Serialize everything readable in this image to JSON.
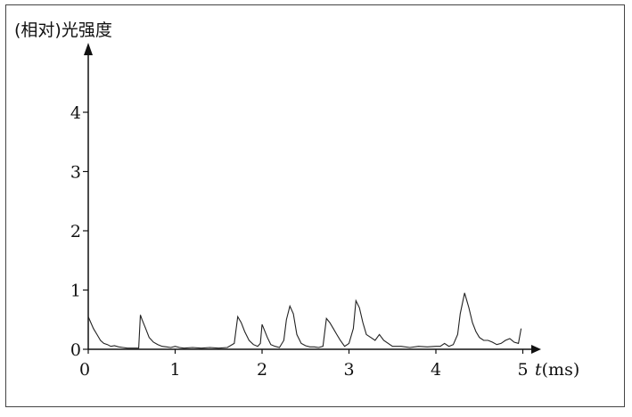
{
  "chart_data": {
    "type": "line",
    "ylabel": "(相对)光强度",
    "xlabel_var": "t",
    "xlabel_unit": "(ms)",
    "xlim": [
      0,
      5
    ],
    "ylim": [
      0,
      5
    ],
    "xticks": [
      "0",
      "1",
      "2",
      "3",
      "4",
      "5"
    ],
    "yticks": [
      "0",
      "1",
      "2",
      "3",
      "4"
    ],
    "grid": false,
    "series": [
      {
        "x": [
          0.0,
          0.03,
          0.06,
          0.1,
          0.14,
          0.18,
          0.22,
          0.26,
          0.3,
          0.35,
          0.4,
          0.45,
          0.5,
          0.55,
          0.58,
          0.6,
          0.62,
          0.66,
          0.7,
          0.75,
          0.8,
          0.85,
          0.9,
          0.95,
          1.0,
          1.05,
          1.1,
          1.2,
          1.3,
          1.4,
          1.5,
          1.6,
          1.68,
          1.72,
          1.76,
          1.8,
          1.85,
          1.9,
          1.95,
          1.98,
          2.0,
          2.02,
          2.06,
          2.1,
          2.15,
          2.2,
          2.25,
          2.28,
          2.32,
          2.36,
          2.4,
          2.45,
          2.5,
          2.55,
          2.6,
          2.65,
          2.7,
          2.74,
          2.78,
          2.82,
          2.86,
          2.9,
          2.95,
          3.0,
          3.05,
          3.08,
          3.12,
          3.16,
          3.2,
          3.25,
          3.3,
          3.35,
          3.4,
          3.5,
          3.6,
          3.7,
          3.8,
          3.9,
          4.0,
          4.05,
          4.1,
          4.15,
          4.2,
          4.25,
          4.28,
          4.33,
          4.38,
          4.42,
          4.46,
          4.5,
          4.55,
          4.6,
          4.65,
          4.7,
          4.75,
          4.8,
          4.85,
          4.9,
          4.95,
          4.98
        ],
        "y": [
          0.55,
          0.45,
          0.35,
          0.25,
          0.15,
          0.1,
          0.08,
          0.05,
          0.06,
          0.04,
          0.03,
          0.02,
          0.02,
          0.02,
          0.02,
          0.58,
          0.5,
          0.35,
          0.2,
          0.12,
          0.08,
          0.05,
          0.04,
          0.03,
          0.05,
          0.03,
          0.02,
          0.03,
          0.02,
          0.03,
          0.02,
          0.03,
          0.1,
          0.55,
          0.45,
          0.3,
          0.15,
          0.08,
          0.05,
          0.1,
          0.42,
          0.35,
          0.2,
          0.08,
          0.05,
          0.03,
          0.15,
          0.5,
          0.73,
          0.6,
          0.25,
          0.1,
          0.06,
          0.04,
          0.04,
          0.03,
          0.05,
          0.52,
          0.45,
          0.35,
          0.25,
          0.15,
          0.05,
          0.1,
          0.35,
          0.82,
          0.7,
          0.45,
          0.25,
          0.2,
          0.15,
          0.25,
          0.15,
          0.05,
          0.05,
          0.03,
          0.05,
          0.04,
          0.05,
          0.05,
          0.1,
          0.05,
          0.08,
          0.25,
          0.6,
          0.95,
          0.7,
          0.45,
          0.3,
          0.2,
          0.15,
          0.15,
          0.12,
          0.08,
          0.1,
          0.15,
          0.18,
          0.12,
          0.1,
          0.35
        ]
      }
    ]
  }
}
